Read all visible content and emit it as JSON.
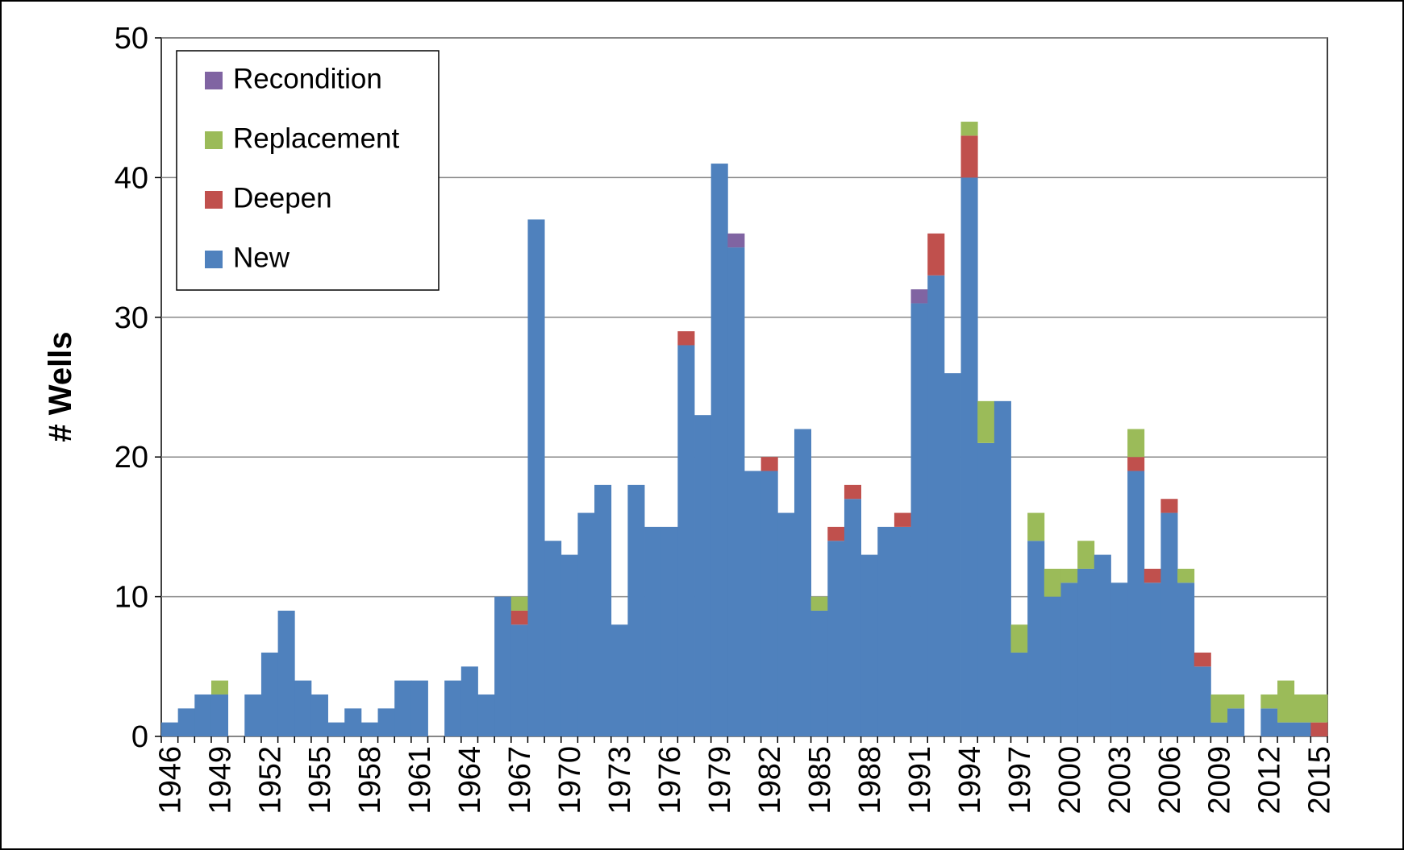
{
  "chart_data": {
    "type": "stacked_bar",
    "y_label": "# Wells",
    "categories": [
      "1946",
      null,
      null,
      "1949",
      null,
      null,
      "1952",
      null,
      null,
      "1955",
      null,
      null,
      "1958",
      null,
      null,
      "1961",
      null,
      null,
      "1964",
      null,
      null,
      "1967",
      null,
      null,
      "1970",
      null,
      null,
      "1973",
      null,
      null,
      "1976",
      null,
      null,
      "1979",
      null,
      null,
      "1982",
      null,
      null,
      "1985",
      null,
      null,
      "1988",
      null,
      null,
      "1991",
      null,
      null,
      "1994",
      null,
      null,
      "1997",
      null,
      null,
      "2000",
      null,
      null,
      "2003",
      null,
      null,
      "2006",
      null,
      null,
      "2009",
      null,
      null,
      "2012",
      null,
      null,
      "2015"
    ],
    "series": [
      {
        "name": "New",
        "color": "#4f81bd",
        "values": [
          1,
          2,
          3,
          3,
          0,
          3,
          6,
          9,
          4,
          3,
          1,
          2,
          1,
          2,
          4,
          4,
          0,
          4,
          5,
          3,
          10,
          8,
          37,
          14,
          13,
          16,
          18,
          8,
          18,
          15,
          15,
          28,
          23,
          41,
          35,
          19,
          19,
          16,
          22,
          9,
          14,
          17,
          13,
          15,
          15,
          31,
          33,
          26,
          40,
          21,
          24,
          6,
          14,
          10,
          11,
          12,
          13,
          11,
          19,
          11,
          16,
          11,
          5,
          1,
          2,
          0,
          2,
          1,
          1,
          0
        ]
      },
      {
        "name": "Deepen",
        "color": "#c0504d",
        "values": [
          0,
          0,
          0,
          0,
          0,
          0,
          0,
          0,
          0,
          0,
          0,
          0,
          0,
          0,
          0,
          0,
          0,
          0,
          0,
          0,
          0,
          1,
          0,
          0,
          0,
          0,
          0,
          0,
          0,
          0,
          0,
          1,
          0,
          0,
          0,
          0,
          1,
          0,
          0,
          0,
          1,
          1,
          0,
          0,
          1,
          0,
          3,
          0,
          3,
          0,
          0,
          0,
          0,
          0,
          0,
          0,
          0,
          0,
          1,
          1,
          1,
          0,
          1,
          0,
          0,
          0,
          0,
          0,
          0,
          1
        ]
      },
      {
        "name": "Replacement",
        "color": "#9bbb59",
        "values": [
          0,
          0,
          0,
          1,
          0,
          0,
          0,
          0,
          0,
          0,
          0,
          0,
          0,
          0,
          0,
          0,
          0,
          0,
          0,
          0,
          0,
          1,
          0,
          0,
          0,
          0,
          0,
          0,
          0,
          0,
          0,
          0,
          0,
          0,
          0,
          0,
          0,
          0,
          0,
          1,
          0,
          0,
          0,
          0,
          0,
          0,
          0,
          0,
          1,
          3,
          0,
          2,
          2,
          2,
          1,
          2,
          0,
          0,
          2,
          0,
          0,
          1,
          0,
          2,
          1,
          0,
          1,
          3,
          2,
          2
        ]
      },
      {
        "name": "Recondition",
        "color": "#8064a2",
        "values": [
          0,
          0,
          0,
          0,
          0,
          0,
          0,
          0,
          0,
          0,
          0,
          0,
          0,
          0,
          0,
          0,
          0,
          0,
          0,
          0,
          0,
          0,
          0,
          0,
          0,
          0,
          0,
          0,
          0,
          0,
          0,
          0,
          0,
          0,
          1,
          0,
          0,
          0,
          0,
          0,
          0,
          0,
          0,
          0,
          0,
          1,
          0,
          0,
          0,
          0,
          0,
          0,
          0,
          0,
          0,
          0,
          0,
          0,
          0,
          0,
          0,
          0,
          0,
          0,
          0,
          0,
          0,
          0,
          0,
          0
        ]
      }
    ],
    "ylim": [
      0,
      50
    ],
    "yticks": [
      0,
      10,
      20,
      30,
      40,
      50
    ],
    "grid": true,
    "legend": "upper left"
  }
}
